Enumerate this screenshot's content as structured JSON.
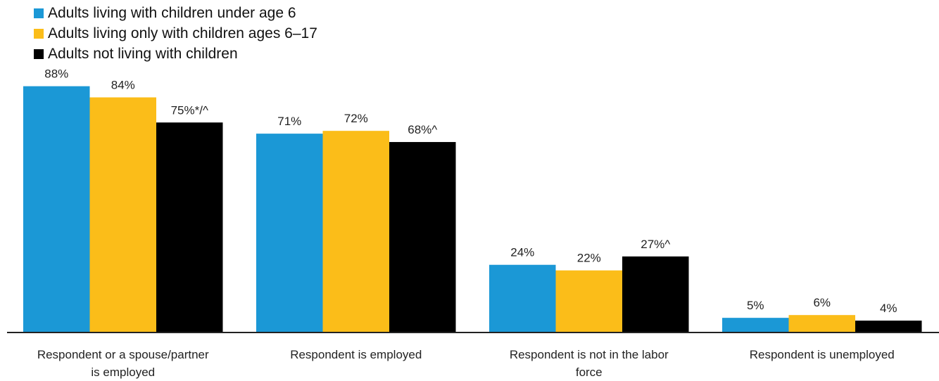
{
  "chart_data": {
    "type": "bar",
    "categories": [
      [
        "Respondent or a spouse/partner",
        "is employed"
      ],
      [
        "Respondent is employed"
      ],
      [
        "Respondent is not in the labor",
        "force"
      ],
      [
        "Respondent is unemployed"
      ]
    ],
    "series": [
      {
        "name": "Adults living with children under age 6",
        "color": "#1b98d6",
        "values": [
          88,
          71,
          24,
          5
        ],
        "labels": [
          "88%",
          "71%",
          "24%",
          "5%"
        ]
      },
      {
        "name": "Adults living only with children ages 6–17",
        "color": "#fbbd19",
        "values": [
          84,
          72,
          22,
          6
        ],
        "labels": [
          "84%",
          "72%",
          "22%",
          "6%"
        ]
      },
      {
        "name": "Adults not living with children",
        "color": "#000000",
        "values": [
          75,
          68,
          27,
          4
        ],
        "labels": [
          "75%*/^",
          "68%^",
          "27%^",
          "4%"
        ]
      }
    ],
    "ylim": [
      0,
      100
    ],
    "grid": false,
    "legend_position": "top-left"
  }
}
